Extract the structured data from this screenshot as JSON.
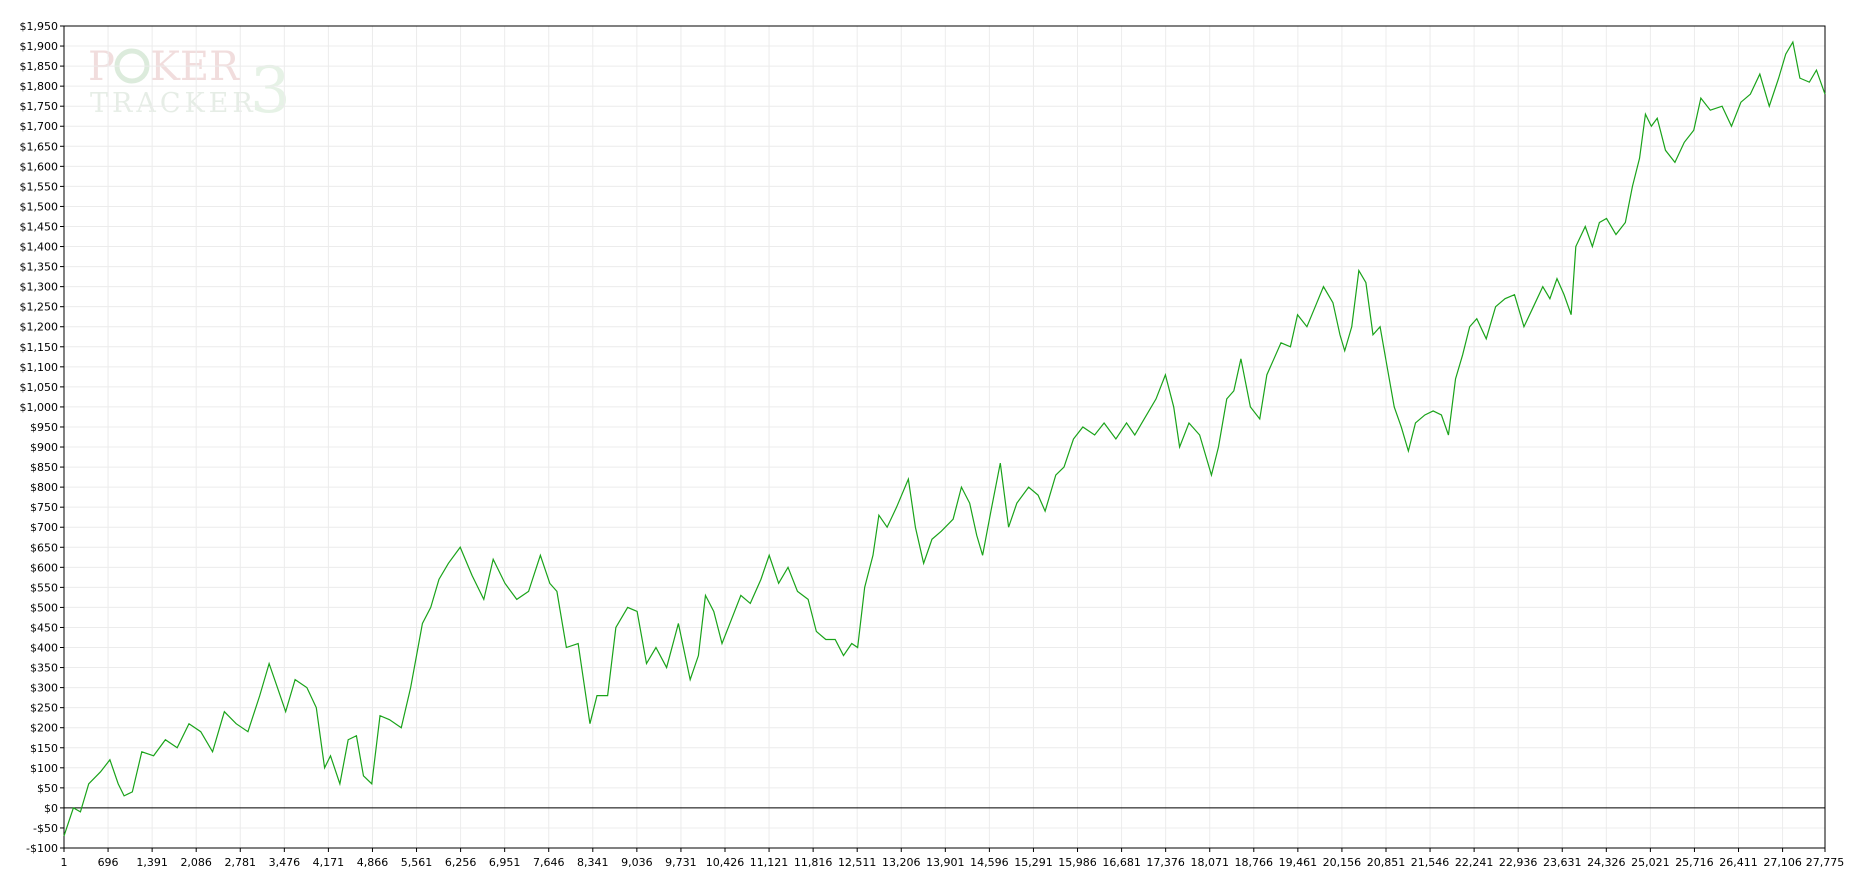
{
  "chart_data": {
    "type": "line",
    "watermark": [
      "P",
      "KER",
      "TRACKER",
      "3"
    ],
    "x": [
      1,
      149,
      260,
      391,
      577,
      725,
      856,
      949,
      1079,
      1228,
      1414,
      1600,
      1786,
      1972,
      2158,
      2344,
      2530,
      2716,
      2902,
      3088,
      3236,
      3367,
      3497,
      3646,
      3832,
      3980,
      4111,
      4204,
      4352,
      4483,
      4613,
      4724,
      4855,
      4985,
      5134,
      5320,
      5468,
      5654,
      5785,
      5915,
      6064,
      6250,
      6436,
      6622,
      6770,
      6956,
      7142,
      7328,
      7514,
      7663,
      7775,
      7924,
      8110,
      8296,
      8407,
      8575,
      8705,
      8891,
      9040,
      9188,
      9337,
      9505,
      9691,
      9877,
      10007,
      10118,
      10249,
      10379,
      10528,
      10676,
      10825,
      10993,
      11123,
      11272,
      11420,
      11569,
      11737,
      11867,
      12016,
      12164,
      12295,
      12425,
      12518,
      12629,
      12760,
      12853,
      12983,
      13132,
      13318,
      13429,
      13559,
      13690,
      13838,
      14024,
      14155,
      14285,
      14396,
      14489,
      14620,
      14768,
      14899,
      15029,
      15215,
      15364,
      15475,
      15643,
      15773,
      15922,
      16070,
      16256,
      16405,
      16591,
      16759,
      16889,
      17038,
      17224,
      17372,
      17503,
      17596,
      17744,
      17912,
      18098,
      18209,
      18340,
      18451,
      18563,
      18712,
      18860,
      18972,
      19084,
      19195,
      19344,
      19456,
      19604,
      19735,
      19865,
      20014,
      20125,
      20200,
      20311,
      20423,
      20534,
      20646,
      20758,
      20869,
      20981,
      21092,
      21204,
      21316,
      21464,
      21595,
      21725,
      21836,
      21948,
      22060,
      22171,
      22283,
      22432,
      22580,
      22729,
      22878,
      23027,
      23176,
      23324,
      23436,
      23548,
      23659,
      23771,
      23845,
      23994,
      24106,
      24217,
      24329,
      24478,
      24626,
      24738,
      24850,
      24943,
      25036,
      25129,
      25259,
      25408,
      25556,
      25705,
      25817,
      25966,
      26152,
      26300,
      26449,
      26598,
      26747,
      26896,
      27044,
      27156,
      27268,
      27379,
      27528,
      27640,
      27775
    ],
    "series": [
      {
        "color": "#1aa31a",
        "values": [
          -70,
          0,
          -10,
          60,
          90,
          120,
          60,
          30,
          40,
          140,
          130,
          170,
          150,
          210,
          190,
          140,
          240,
          210,
          190,
          280,
          360,
          300,
          240,
          320,
          300,
          250,
          100,
          130,
          60,
          170,
          180,
          80,
          60,
          230,
          220,
          200,
          300,
          460,
          500,
          570,
          610,
          650,
          580,
          520,
          620,
          560,
          520,
          540,
          630,
          560,
          540,
          400,
          410,
          210,
          280,
          280,
          450,
          500,
          490,
          360,
          400,
          350,
          460,
          320,
          380,
          530,
          490,
          410,
          470,
          530,
          510,
          570,
          630,
          560,
          600,
          540,
          520,
          440,
          420,
          420,
          380,
          410,
          400,
          550,
          630,
          730,
          700,
          750,
          820,
          700,
          610,
          670,
          690,
          720,
          800,
          760,
          680,
          630,
          740,
          860,
          700,
          760,
          800,
          780,
          740,
          830,
          850,
          920,
          950,
          930,
          960,
          920,
          960,
          930,
          970,
          1020,
          1080,
          1000,
          900,
          960,
          930,
          830,
          900,
          1020,
          1040,
          1120,
          1000,
          970,
          1080,
          1120,
          1160,
          1150,
          1230,
          1200,
          1250,
          1300,
          1260,
          1180,
          1140,
          1200,
          1340,
          1310,
          1180,
          1200,
          1100,
          1000,
          950,
          890,
          960,
          980,
          990,
          980,
          930,
          1070,
          1130,
          1200,
          1220,
          1170,
          1250,
          1270,
          1280,
          1200,
          1250,
          1300,
          1270,
          1320,
          1280,
          1230,
          1400,
          1450,
          1400,
          1460,
          1470,
          1430,
          1460,
          1550,
          1620,
          1730,
          1700,
          1720,
          1640,
          1610,
          1660,
          1690,
          1770,
          1740,
          1750,
          1700,
          1760,
          1780,
          1830,
          1750,
          1820,
          1880,
          1910,
          1820,
          1810,
          1840,
          1780
        ]
      }
    ],
    "xlim": [
      1,
      27775
    ],
    "xticks": [
      1,
      696,
      {
        "value": 1391,
        "label": "1,391"
      },
      {
        "value": 2086,
        "label": "2,086"
      },
      {
        "value": 2781,
        "label": "2,781"
      },
      {
        "value": 3476,
        "label": "3,476"
      },
      {
        "value": 4171,
        "label": "4,171"
      },
      {
        "value": 4866,
        "label": "4,866"
      },
      {
        "value": 5561,
        "label": "5,561"
      },
      {
        "value": 6256,
        "label": "6,256"
      },
      {
        "value": 6951,
        "label": "6,951"
      },
      {
        "value": 7646,
        "label": "7,646"
      },
      {
        "value": 8341,
        "label": "8,341"
      },
      {
        "value": 9036,
        "label": "9,036"
      },
      {
        "value": 9731,
        "label": "9,731"
      },
      {
        "value": 10426,
        "label": "10,426"
      },
      {
        "value": 11121,
        "label": "11,121"
      },
      {
        "value": 11816,
        "label": "11,816"
      },
      {
        "value": 12511,
        "label": "12,511"
      },
      {
        "value": 13206,
        "label": "13,206"
      },
      {
        "value": 13901,
        "label": "13,901"
      },
      {
        "value": 14596,
        "label": "14,596"
      },
      {
        "value": 15291,
        "label": "15,291"
      },
      {
        "value": 15986,
        "label": "15,986"
      },
      {
        "value": 16681,
        "label": "16,681"
      },
      {
        "value": 17376,
        "label": "17,376"
      },
      {
        "value": 18071,
        "label": "18,071"
      },
      {
        "value": 18766,
        "label": "18,766"
      },
      {
        "value": 19461,
        "label": "19,461"
      },
      {
        "value": 20156,
        "label": "20,156"
      },
      {
        "value": 20851,
        "label": "20,851"
      },
      {
        "value": 21546,
        "label": "21,546"
      },
      {
        "value": 22241,
        "label": "22,241"
      },
      {
        "value": 22936,
        "label": "22,936"
      },
      {
        "value": 23631,
        "label": "23,631"
      },
      {
        "value": 24326,
        "label": "24,326"
      },
      {
        "value": 25021,
        "label": "25,021"
      },
      {
        "value": 25716,
        "label": "25,716"
      },
      {
        "value": 26411,
        "label": "26,411"
      },
      {
        "value": 27106,
        "label": "27,106"
      },
      {
        "value": 27775,
        "label": "27,775"
      }
    ],
    "ylim": [
      -100,
      1950
    ],
    "yticks": [
      {
        "value": -100,
        "label": "-$100"
      },
      {
        "value": -50,
        "label": "-$50"
      },
      {
        "value": 0,
        "label": "$0"
      },
      {
        "value": 50,
        "label": "$50"
      },
      {
        "value": 100,
        "label": "$100"
      },
      {
        "value": 150,
        "label": "$150"
      },
      {
        "value": 200,
        "label": "$200"
      },
      {
        "value": 250,
        "label": "$250"
      },
      {
        "value": 300,
        "label": "$300"
      },
      {
        "value": 350,
        "label": "$350"
      },
      {
        "value": 400,
        "label": "$400"
      },
      {
        "value": 450,
        "label": "$450"
      },
      {
        "value": 500,
        "label": "$500"
      },
      {
        "value": 550,
        "label": "$550"
      },
      {
        "value": 600,
        "label": "$600"
      },
      {
        "value": 650,
        "label": "$650"
      },
      {
        "value": 700,
        "label": "$700"
      },
      {
        "value": 750,
        "label": "$750"
      },
      {
        "value": 800,
        "label": "$800"
      },
      {
        "value": 850,
        "label": "$850"
      },
      {
        "value": 900,
        "label": "$900"
      },
      {
        "value": 950,
        "label": "$950"
      },
      {
        "value": 1000,
        "label": "$1,000"
      },
      {
        "value": 1050,
        "label": "$1,050"
      },
      {
        "value": 1100,
        "label": "$1,100"
      },
      {
        "value": 1150,
        "label": "$1,150"
      },
      {
        "value": 1200,
        "label": "$1,200"
      },
      {
        "value": 1250,
        "label": "$1,250"
      },
      {
        "value": 1300,
        "label": "$1,300"
      },
      {
        "value": 1350,
        "label": "$1,350"
      },
      {
        "value": 1400,
        "label": "$1,400"
      },
      {
        "value": 1450,
        "label": "$1,450"
      },
      {
        "value": 1500,
        "label": "$1,500"
      },
      {
        "value": 1550,
        "label": "$1,550"
      },
      {
        "value": 1600,
        "label": "$1,600"
      },
      {
        "value": 1650,
        "label": "$1,650"
      },
      {
        "value": 1700,
        "label": "$1,700"
      },
      {
        "value": 1750,
        "label": "$1,750"
      },
      {
        "value": 1800,
        "label": "$1,800"
      },
      {
        "value": 1850,
        "label": "$1,850"
      },
      {
        "value": 1900,
        "label": "$1,900"
      },
      {
        "value": 1950,
        "label": "$1,950"
      }
    ],
    "grid": true
  }
}
